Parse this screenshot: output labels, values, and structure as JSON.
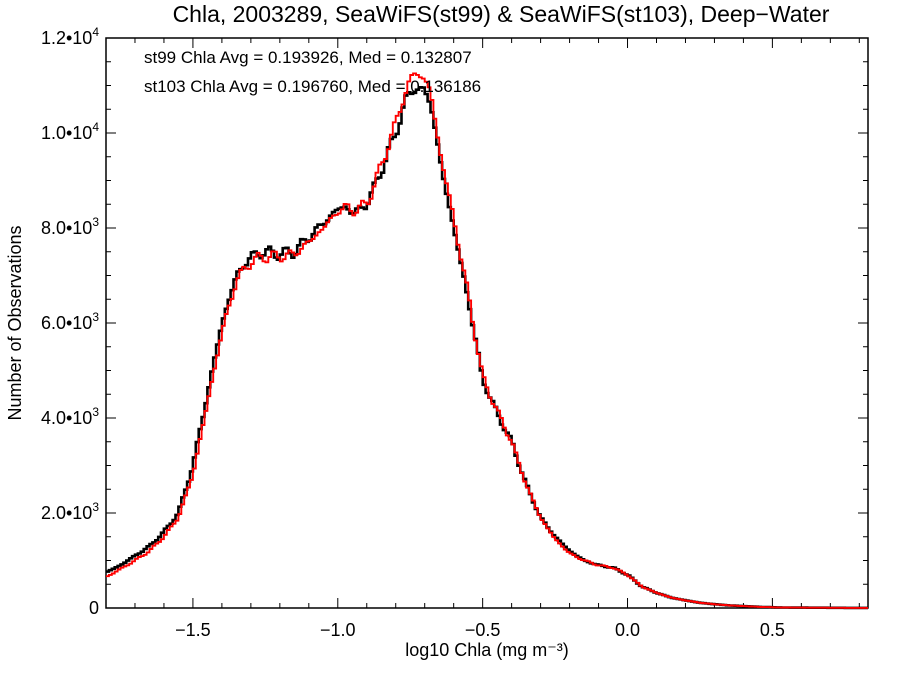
{
  "chart_data": {
    "type": "line",
    "title": "Chla, 2003289, SeaWiFS(st99) & SeaWiFS(st103), Deep−Water",
    "xlabel": "log10 Chla (mg m⁻³)",
    "ylabel": "Number of Observations",
    "xlim": [
      -1.8,
      0.83
    ],
    "ylim": [
      0,
      12000
    ],
    "x_ticks": [
      -1.5,
      -1.0,
      -0.5,
      0.0,
      0.5
    ],
    "x_tick_labels": [
      "−1.5",
      "−1.0",
      "−0.5",
      "0.0",
      "0.5"
    ],
    "y_ticks": [
      0,
      2000,
      4000,
      6000,
      8000,
      10000,
      12000
    ],
    "y_tick_labels": [
      {
        "mant": "0",
        "exp": ""
      },
      {
        "mant": "2.0•10",
        "exp": "3"
      },
      {
        "mant": "4.0•10",
        "exp": "3"
      },
      {
        "mant": "6.0•10",
        "exp": "3"
      },
      {
        "mant": "8.0•10",
        "exp": "3"
      },
      {
        "mant": "1.0•10",
        "exp": "4"
      },
      {
        "mant": "1.2•10",
        "exp": "4"
      }
    ],
    "annotations": [
      {
        "text": "st99 Chla Avg = 0.193926, Med = 0.132807",
        "color": "#000000"
      },
      {
        "text": "st103 Chla Avg = 0.196760, Med = 0.136186",
        "color": "#ff0000"
      }
    ],
    "series": [
      {
        "color": "#000000",
        "x": [
          -1.8,
          -1.75,
          -1.7,
          -1.65,
          -1.6,
          -1.55,
          -1.5,
          -1.45,
          -1.4,
          -1.35,
          -1.3,
          -1.25,
          -1.2,
          -1.15,
          -1.1,
          -1.05,
          -1.0,
          -0.97,
          -0.95,
          -0.9,
          -0.85,
          -0.8,
          -0.77,
          -0.75,
          -0.73,
          -0.72,
          -0.7,
          -0.68,
          -0.65,
          -0.6,
          -0.55,
          -0.5,
          -0.45,
          -0.4,
          -0.35,
          -0.3,
          -0.25,
          -0.2,
          -0.15,
          -0.1,
          -0.05,
          0.0,
          0.05,
          0.1,
          0.15,
          0.2,
          0.25,
          0.3,
          0.35,
          0.4,
          0.45,
          0.5,
          0.55,
          0.6,
          0.65,
          0.7,
          0.75,
          0.83
        ],
        "y": [
          750,
          900,
          1100,
          1300,
          1600,
          2000,
          3000,
          4500,
          6000,
          7000,
          7400,
          7500,
          7450,
          7500,
          7800,
          8100,
          8400,
          8450,
          8300,
          8500,
          9200,
          10000,
          10600,
          10850,
          11000,
          10900,
          10850,
          10700,
          9500,
          8000,
          6500,
          4800,
          4100,
          3500,
          2600,
          1900,
          1500,
          1200,
          1000,
          900,
          850,
          700,
          450,
          320,
          220,
          160,
          110,
          80,
          55,
          40,
          25,
          15,
          10,
          8,
          6,
          5,
          3,
          2
        ]
      },
      {
        "color": "#ff0000",
        "x": [
          -1.8,
          -1.75,
          -1.7,
          -1.65,
          -1.6,
          -1.55,
          -1.5,
          -1.45,
          -1.4,
          -1.35,
          -1.3,
          -1.25,
          -1.2,
          -1.15,
          -1.1,
          -1.05,
          -1.0,
          -0.97,
          -0.95,
          -0.9,
          -0.85,
          -0.8,
          -0.77,
          -0.75,
          -0.73,
          -0.72,
          -0.7,
          -0.68,
          -0.65,
          -0.6,
          -0.55,
          -0.5,
          -0.45,
          -0.4,
          -0.35,
          -0.3,
          -0.25,
          -0.2,
          -0.15,
          -0.1,
          -0.05,
          0.0,
          0.05,
          0.1,
          0.15,
          0.2,
          0.25,
          0.3,
          0.35,
          0.4,
          0.45,
          0.5,
          0.55,
          0.6,
          0.65,
          0.7,
          0.75,
          0.83
        ],
        "y": [
          650,
          820,
          1000,
          1200,
          1500,
          1900,
          2800,
          4300,
          5800,
          6900,
          7300,
          7400,
          7400,
          7450,
          7700,
          8000,
          8350,
          8450,
          8350,
          8500,
          9300,
          10200,
          10800,
          11100,
          11300,
          11250,
          11100,
          10900,
          9700,
          8200,
          6600,
          4850,
          4150,
          3500,
          2600,
          1900,
          1450,
          1150,
          1000,
          900,
          850,
          700,
          450,
          320,
          220,
          160,
          110,
          80,
          55,
          40,
          25,
          15,
          10,
          8,
          6,
          5,
          3,
          2
        ]
      }
    ]
  }
}
